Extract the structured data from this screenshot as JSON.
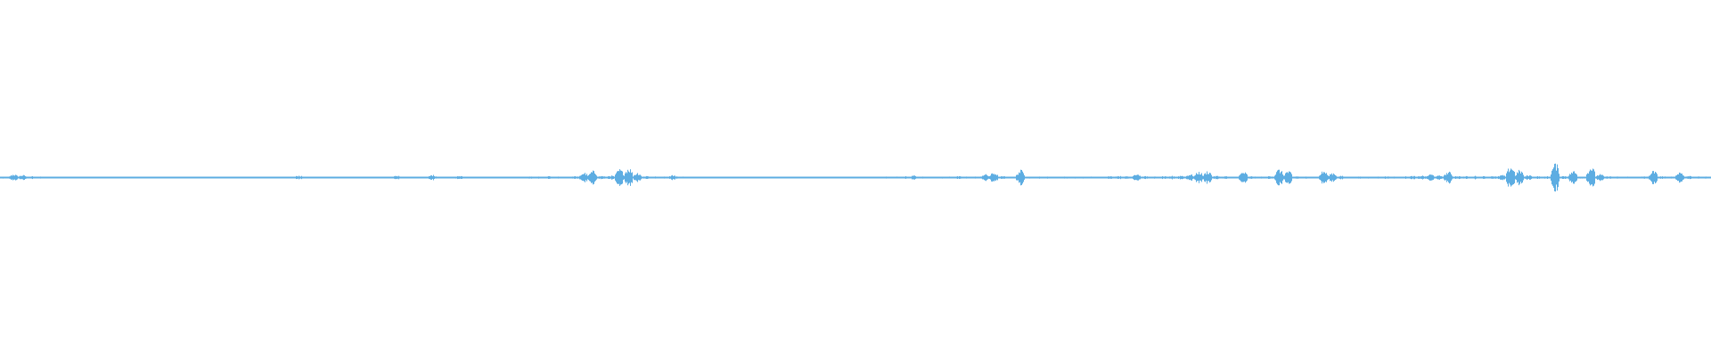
{
  "chart_data": {
    "type": "area",
    "kind": "audio-waveform",
    "color": "#5dade2",
    "background": "#ffffff",
    "grid": false,
    "legend": "none",
    "ylim": [
      -1,
      1
    ],
    "peak_amplitude_bins": [
      0.006,
      0.02,
      0.015,
      0.008,
      0.006,
      0.005,
      0.005,
      0.005,
      0.005,
      0.005,
      0.004,
      0.004,
      0.004,
      0.004,
      0.004,
      0.004,
      0.004,
      0.004,
      0.004,
      0.004,
      0.004,
      0.004,
      0.004,
      0.004,
      0.004,
      0.004,
      0.004,
      0.004,
      0.004,
      0.004,
      0.003,
      0.003,
      0.003,
      0.012,
      0.003,
      0.003,
      0.003,
      0.003,
      0.003,
      0.003,
      0.003,
      0.003,
      0.003,
      0.003,
      0.012,
      0.003,
      0.003,
      0.003,
      0.016,
      0.003,
      0.003,
      0.01,
      0.003,
      0.003,
      0.003,
      0.003,
      0.003,
      0.003,
      0.003,
      0.006,
      0.006,
      0.008,
      0.006,
      0.006,
      0.008,
      0.03,
      0.04,
      0.01,
      0.012,
      0.05,
      0.06,
      0.03,
      0.01,
      0.006,
      0.006,
      0.015,
      0.006,
      0.005,
      0.005,
      0.005,
      0.004,
      0.004,
      0.004,
      0.004,
      0.004,
      0.004,
      0.004,
      0.004,
      0.004,
      0.004,
      0.004,
      0.004,
      0.004,
      0.004,
      0.004,
      0.004,
      0.004,
      0.004,
      0.004,
      0.006,
      0.006,
      0.008,
      0.012,
      0.006,
      0.005,
      0.006,
      0.006,
      0.008,
      0.006,
      0.006,
      0.02,
      0.03,
      0.008,
      0.006,
      0.045,
      0.006,
      0.006,
      0.006,
      0.006,
      0.006,
      0.006,
      0.006,
      0.006,
      0.006,
      0.008,
      0.01,
      0.008,
      0.025,
      0.008,
      0.006,
      0.008,
      0.01,
      0.012,
      0.02,
      0.035,
      0.04,
      0.01,
      0.008,
      0.006,
      0.035,
      0.008,
      0.006,
      0.01,
      0.05,
      0.04,
      0.008,
      0.006,
      0.006,
      0.04,
      0.03,
      0.01,
      0.006,
      0.006,
      0.006,
      0.006,
      0.008,
      0.006,
      0.008,
      0.01,
      0.012,
      0.02,
      0.012,
      0.035,
      0.01,
      0.008,
      0.01,
      0.008,
      0.01,
      0.015,
      0.07,
      0.045,
      0.015,
      0.008,
      0.008,
      0.085,
      0.01,
      0.04,
      0.008,
      0.065,
      0.02,
      0.008,
      0.006,
      0.006,
      0.006,
      0.008,
      0.04,
      0.008,
      0.006,
      0.035,
      0.01,
      0.006,
      0.006
    ]
  }
}
